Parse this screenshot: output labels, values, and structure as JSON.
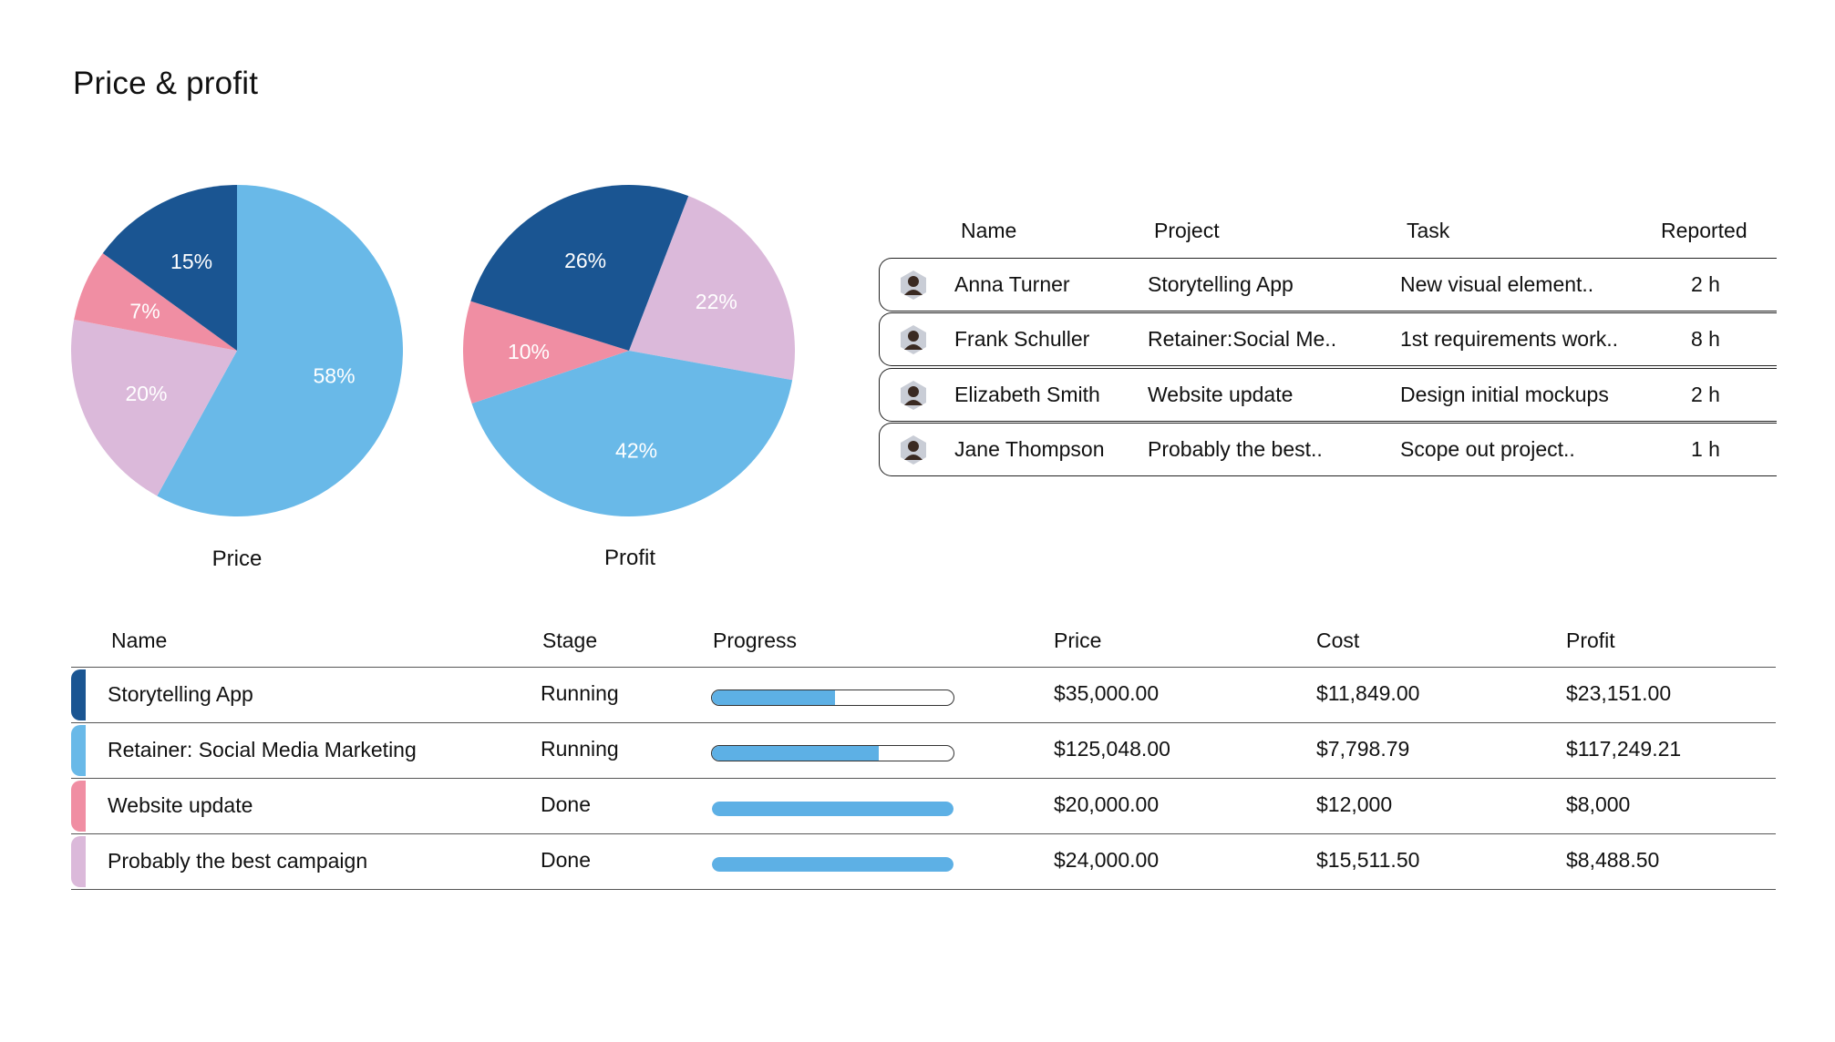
{
  "page": {
    "title": "Price & profit"
  },
  "colors": {
    "dark_blue": "#1a5592",
    "light_blue": "#69b9e8",
    "pink": "#f08ea3",
    "lilac": "#dbb9da",
    "progress": "#5db0e5"
  },
  "charts": [
    {
      "caption": "Price",
      "chart_data": {
        "type": "pie",
        "title": "Price",
        "slices": [
          {
            "value": 58,
            "label": "58%",
            "color": "#69b9e8"
          },
          {
            "value": 20,
            "label": "20%",
            "color": "#dbb9da"
          },
          {
            "value": 7,
            "label": "7%",
            "color": "#f08ea3"
          },
          {
            "value": 15,
            "label": "15%",
            "color": "#1a5592"
          }
        ]
      }
    },
    {
      "caption": "Profit",
      "chart_data": {
        "type": "pie",
        "title": "Profit",
        "slices": [
          {
            "value": 22,
            "label": "22%",
            "color": "#dbb9da"
          },
          {
            "value": 42,
            "label": "42%",
            "color": "#69b9e8"
          },
          {
            "value": 10,
            "label": "10%",
            "color": "#f08ea3"
          },
          {
            "value": 26,
            "label": "26%",
            "color": "#1a5592"
          }
        ]
      }
    }
  ],
  "reports": {
    "headers": {
      "name": "Name",
      "project": "Project",
      "task": "Task",
      "reported": "Reported"
    },
    "rows": [
      {
        "name": "Anna Turner",
        "project": "Storytelling App",
        "task": "New visual element..",
        "reported": "2 h",
        "avatar": "avatar-icon"
      },
      {
        "name": "Frank Schuller",
        "project": "Retainer:Social Me..",
        "task": "1st requirements work..",
        "reported": "8 h",
        "avatar": "avatar-icon"
      },
      {
        "name": "Elizabeth Smith",
        "project": "Website update",
        "task": "Design initial mockups",
        "reported": "2 h",
        "avatar": "avatar-icon"
      },
      {
        "name": "Jane Thompson",
        "project": "Probably the best..",
        "task": "Scope out project..",
        "reported": "1 h",
        "avatar": "avatar-icon"
      }
    ]
  },
  "projects": {
    "headers": {
      "name": "Name",
      "stage": "Stage",
      "progress": "Progress",
      "price": "Price",
      "cost": "Cost",
      "profit": "Profit"
    },
    "rows": [
      {
        "name": "Storytelling App",
        "stage": "Running",
        "progress": 0.51,
        "price": "$35,000.00",
        "cost": "$11,849.00",
        "profit": "$23,151.00",
        "color": "#1a5592"
      },
      {
        "name": "Retainer: Social Media Marketing",
        "stage": "Running",
        "progress": 0.69,
        "price": "$125,048.00",
        "cost": "$7,798.79",
        "profit": "$117,249.21",
        "color": "#69b9e8"
      },
      {
        "name": "Website update",
        "stage": "Done",
        "progress": 1.0,
        "price": "$20,000.00",
        "cost": "$12,000",
        "profit": "$8,000",
        "color": "#f08ea3"
      },
      {
        "name": "Probably the best campaign",
        "stage": "Done",
        "progress": 1.0,
        "price": "$24,000.00",
        "cost": "$15,511.50",
        "profit": "$8,488.50",
        "color": "#dbb9da"
      }
    ]
  }
}
